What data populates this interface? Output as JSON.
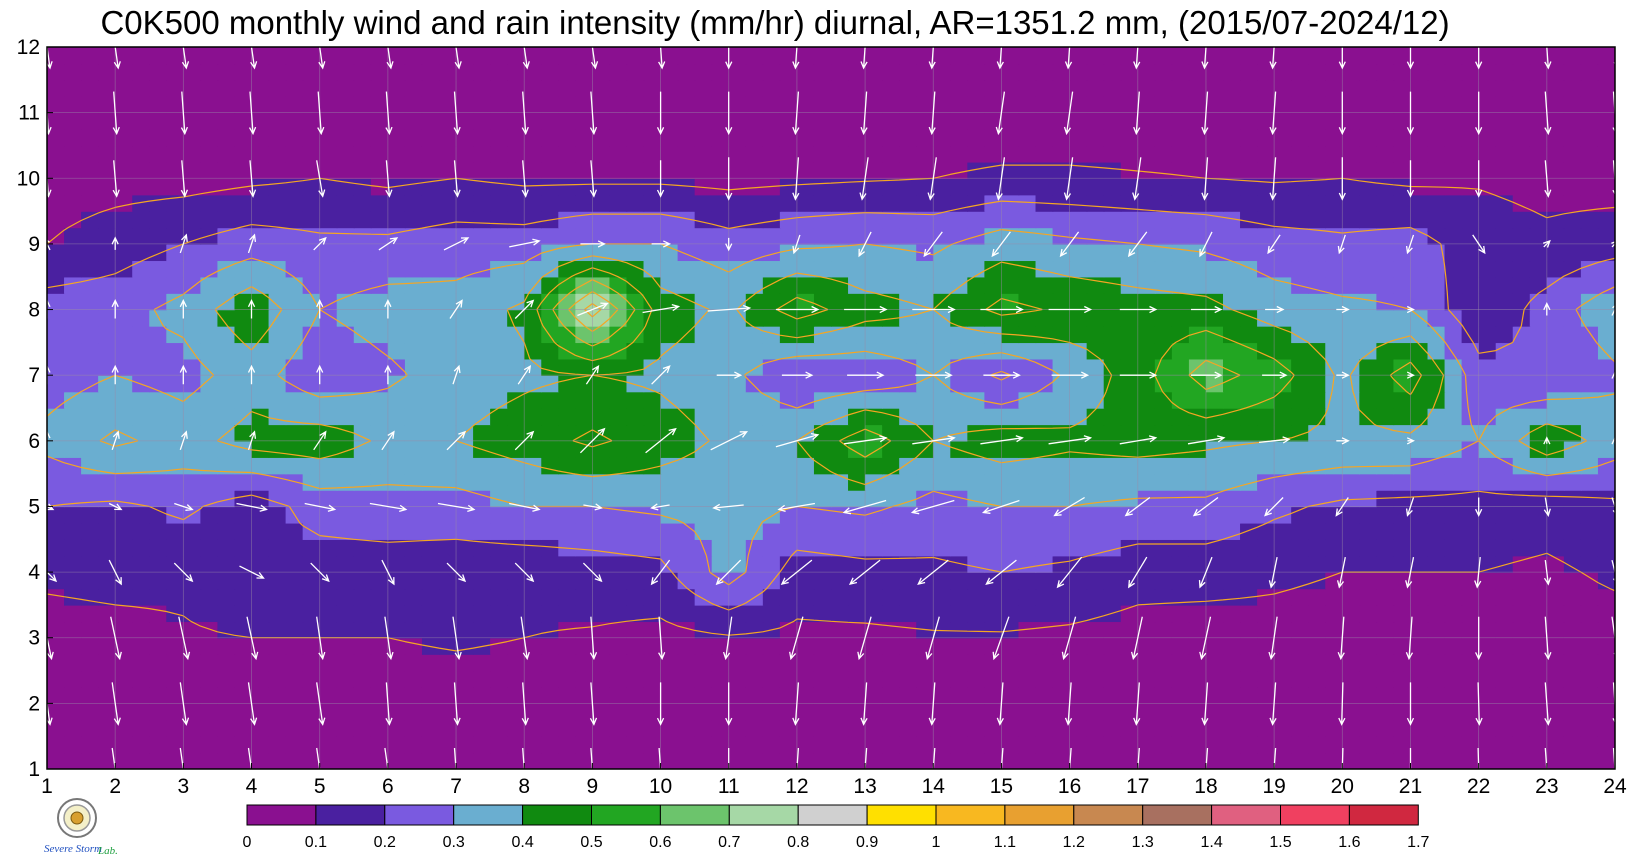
{
  "title": "C0K500 monthly wind and rain intensity (mm/hr) diurnal, AR=1351.2 mm, (2015/07-2024/12)",
  "logo_text": "Severe Storm Lab.",
  "chart_data": {
    "type": "heatmap",
    "x_ticks": [
      "1",
      "2",
      "3",
      "4",
      "5",
      "6",
      "7",
      "8",
      "9",
      "10",
      "11",
      "12",
      "13",
      "14",
      "15",
      "16",
      "17",
      "18",
      "19",
      "20",
      "21",
      "22",
      "23",
      "24"
    ],
    "y_ticks": [
      "1",
      "2",
      "3",
      "4",
      "5",
      "6",
      "7",
      "8",
      "9",
      "10",
      "11",
      "12"
    ],
    "xlim": [
      1,
      24
    ],
    "ylim": [
      1,
      12
    ],
    "grid": true,
    "colorbar": {
      "levels": [
        "0",
        "0.1",
        "0.2",
        "0.3",
        "0.4",
        "0.5",
        "0.6",
        "0.7",
        "0.8",
        "0.9",
        "1",
        "1.1",
        "1.2",
        "1.3",
        "1.4",
        "1.5",
        "1.6",
        "1.7"
      ],
      "colors": [
        "#8a1090",
        "#4a20a0",
        "#7a5ae0",
        "#6aaed0",
        "#108a10",
        "#22a622",
        "#6cc46c",
        "#a6d8a6",
        "#d0d0d0",
        "#ffe000",
        "#f8b820",
        "#e8a030",
        "#c88850",
        "#a87060",
        "#e06080",
        "#f04060",
        "#d02840"
      ]
    },
    "contour_line_color": "#f5a623",
    "vector_color": "#ffffff",
    "rain_rows": [
      [
        0.02,
        0.02,
        0.02,
        0.02,
        0.02,
        0.02,
        0.02,
        0.02,
        0.02,
        0.02,
        0.02,
        0.02,
        0.02,
        0.02,
        0.02,
        0.02,
        0.02,
        0.02,
        0.02,
        0.02,
        0.02,
        0.02,
        0.02,
        0.02
      ],
      [
        0.02,
        0.02,
        0.02,
        0.02,
        0.02,
        0.02,
        0.02,
        0.02,
        0.02,
        0.02,
        0.02,
        0.02,
        0.02,
        0.02,
        0.02,
        0.02,
        0.02,
        0.02,
        0.02,
        0.02,
        0.02,
        0.02,
        0.02,
        0.02
      ],
      [
        0.06,
        0.07,
        0.09,
        0.1,
        0.1,
        0.1,
        0.12,
        0.1,
        0.09,
        0.07,
        0.09,
        0.08,
        0.08,
        0.09,
        0.09,
        0.08,
        0.06,
        0.05,
        0.06,
        0.05,
        0.05,
        0.05,
        0.04,
        0.05
      ],
      [
        0.12,
        0.13,
        0.12,
        0.18,
        0.15,
        0.15,
        0.14,
        0.13,
        0.15,
        0.17,
        0.35,
        0.15,
        0.17,
        0.18,
        0.2,
        0.18,
        0.14,
        0.14,
        0.12,
        0.1,
        0.1,
        0.1,
        0.08,
        0.12
      ],
      [
        0.2,
        0.18,
        0.22,
        0.15,
        0.24,
        0.26,
        0.26,
        0.3,
        0.3,
        0.32,
        0.33,
        0.3,
        0.32,
        0.27,
        0.3,
        0.3,
        0.28,
        0.28,
        0.22,
        0.18,
        0.17,
        0.17,
        0.15,
        0.18
      ],
      [
        0.33,
        0.42,
        0.36,
        0.44,
        0.46,
        0.38,
        0.4,
        0.45,
        0.52,
        0.45,
        0.38,
        0.4,
        0.56,
        0.4,
        0.45,
        0.42,
        0.44,
        0.42,
        0.4,
        0.38,
        0.38,
        0.3,
        0.47,
        0.35
      ],
      [
        0.25,
        0.3,
        0.26,
        0.35,
        0.22,
        0.28,
        0.35,
        0.38,
        0.4,
        0.38,
        0.33,
        0.2,
        0.22,
        0.3,
        0.18,
        0.32,
        0.45,
        0.65,
        0.55,
        0.38,
        0.55,
        0.24,
        0.2,
        0.28
      ],
      [
        0.25,
        0.26,
        0.33,
        0.48,
        0.3,
        0.35,
        0.34,
        0.42,
        0.85,
        0.45,
        0.38,
        0.55,
        0.44,
        0.4,
        0.53,
        0.48,
        0.45,
        0.43,
        0.35,
        0.32,
        0.3,
        0.12,
        0.24,
        0.38
      ],
      [
        0.1,
        0.15,
        0.2,
        0.25,
        0.22,
        0.22,
        0.25,
        0.25,
        0.3,
        0.3,
        0.24,
        0.28,
        0.3,
        0.28,
        0.35,
        0.32,
        0.3,
        0.28,
        0.24,
        0.22,
        0.24,
        0.15,
        0.12,
        0.15
      ],
      [
        0.05,
        0.06,
        0.06,
        0.08,
        0.1,
        0.08,
        0.1,
        0.08,
        0.08,
        0.08,
        0.07,
        0.08,
        0.09,
        0.1,
        0.12,
        0.12,
        0.11,
        0.1,
        0.09,
        0.1,
        0.08,
        0.09,
        0.07,
        0.06
      ],
      [
        0.02,
        0.02,
        0.02,
        0.02,
        0.02,
        0.02,
        0.02,
        0.02,
        0.02,
        0.02,
        0.02,
        0.02,
        0.02,
        0.02,
        0.02,
        0.02,
        0.02,
        0.02,
        0.02,
        0.02,
        0.02,
        0.02,
        0.02,
        0.02
      ],
      [
        0.02,
        0.02,
        0.02,
        0.02,
        0.02,
        0.02,
        0.02,
        0.02,
        0.02,
        0.02,
        0.02,
        0.02,
        0.02,
        0.02,
        0.02,
        0.02,
        0.02,
        0.02,
        0.02,
        0.02,
        0.02,
        0.02,
        0.02,
        0.02
      ]
    ],
    "wind_u_rows": [
      [
        0.1,
        0.1,
        0.1,
        0.1,
        0.1,
        0.1,
        0.05,
        0.05,
        0.05,
        0.05,
        0,
        -0.05,
        -0.05,
        -0.05,
        -0.05,
        -0.05,
        -0.05,
        -0.05,
        -0.05,
        -0.02,
        0,
        0.02,
        0.05,
        0.05
      ],
      [
        0.1,
        0.1,
        0.1,
        0.1,
        0.1,
        0.05,
        0.05,
        0.05,
        0.05,
        0,
        0,
        -0.05,
        -0.05,
        -0.05,
        -0.05,
        -0.05,
        -0.05,
        -0.05,
        -0.05,
        -0.02,
        0,
        0.02,
        0.05,
        0.05
      ],
      [
        0.15,
        0.15,
        0.15,
        0.15,
        0.1,
        0.1,
        0.1,
        0.1,
        0.05,
        0.05,
        -0.1,
        -0.2,
        -0.2,
        -0.2,
        -0.25,
        -0.2,
        -0.15,
        -0.15,
        -0.1,
        -0.05,
        -0.05,
        0,
        0.05,
        0.1
      ],
      [
        0.3,
        0.2,
        0.3,
        0.4,
        0.3,
        0.2,
        0.3,
        0.3,
        0.3,
        -0.3,
        -0.4,
        -0.5,
        -0.5,
        -0.5,
        -0.5,
        -0.4,
        -0.3,
        -0.2,
        -0.1,
        -0.1,
        -0.1,
        -0.05,
        0.05,
        0.1
      ],
      [
        0.2,
        0.2,
        0.3,
        0.5,
        0.5,
        0.6,
        0.6,
        0.5,
        0.3,
        -0.3,
        -0.5,
        -0.6,
        -0.7,
        -0.7,
        -0.6,
        -0.5,
        -0.4,
        -0.4,
        -0.3,
        -0.2,
        -0.1,
        0,
        0.05,
        0.1
      ],
      [
        0,
        0.1,
        0.1,
        0.1,
        0.2,
        0.2,
        0.3,
        0.3,
        0.4,
        0.5,
        0.6,
        0.7,
        0.7,
        0.7,
        0.7,
        0.7,
        0.6,
        0.6,
        0.5,
        0.2,
        0.1,
        0,
        0,
        0
      ],
      [
        0,
        0,
        0,
        0,
        0,
        0,
        0.1,
        0.2,
        0.2,
        0.3,
        0.4,
        0.5,
        0.6,
        0.6,
        0.6,
        0.6,
        0.6,
        0.5,
        0.4,
        0.2,
        0.1,
        0,
        0,
        0
      ],
      [
        0,
        0,
        0,
        0,
        0,
        0,
        0.2,
        0.3,
        0.5,
        0.6,
        0.7,
        0.7,
        0.7,
        0.7,
        0.7,
        0.7,
        0.6,
        0.5,
        0.3,
        0.2,
        0.1,
        0,
        0,
        0.1
      ],
      [
        -0.1,
        0,
        0.1,
        0.1,
        0.2,
        0.3,
        0.4,
        0.5,
        0.4,
        0.3,
        0,
        -0.1,
        -0.2,
        -0.3,
        -0.3,
        -0.3,
        -0.3,
        -0.2,
        -0.2,
        -0.1,
        -0.1,
        0.2,
        0.1,
        0.1
      ],
      [
        0.05,
        0.05,
        0.05,
        0.05,
        0.1,
        0.05,
        0.05,
        0.05,
        0.05,
        0,
        0,
        -0.05,
        -0.1,
        -0.1,
        -0.1,
        -0.1,
        -0.1,
        -0.05,
        -0.05,
        0,
        0,
        0,
        0.05,
        0.05
      ],
      [
        0.05,
        0.05,
        0.05,
        0.05,
        0.05,
        0.05,
        0.05,
        0.05,
        0.05,
        0,
        0,
        -0.05,
        -0.05,
        -0.05,
        -0.1,
        -0.1,
        -0.05,
        -0.05,
        -0.05,
        0,
        0,
        0,
        0.05,
        0.05
      ],
      [
        0.1,
        0.1,
        0.1,
        0.1,
        0.1,
        0.1,
        0.1,
        0.1,
        0.1,
        0.05,
        0,
        -0.05,
        -0.05,
        -0.05,
        -0.05,
        -0.05,
        -0.05,
        -0.05,
        -0.05,
        0,
        0,
        0,
        0.05,
        0.1
      ]
    ],
    "wind_v_rows": [
      [
        -0.7,
        -0.7,
        -0.7,
        -0.7,
        -0.7,
        -0.7,
        -0.7,
        -0.7,
        -0.7,
        -0.7,
        -0.7,
        -0.7,
        -0.7,
        -0.7,
        -0.7,
        -0.7,
        -0.7,
        -0.7,
        -0.7,
        -0.7,
        -0.7,
        -0.7,
        -0.7,
        -0.7
      ],
      [
        -0.7,
        -0.7,
        -0.7,
        -0.7,
        -0.7,
        -0.7,
        -0.7,
        -0.7,
        -0.7,
        -0.7,
        -0.7,
        -0.7,
        -0.7,
        -0.7,
        -0.7,
        -0.7,
        -0.7,
        -0.7,
        -0.7,
        -0.7,
        -0.7,
        -0.7,
        -0.7,
        -0.7
      ],
      [
        -0.7,
        -0.7,
        -0.7,
        -0.7,
        -0.7,
        -0.7,
        -0.7,
        -0.7,
        -0.7,
        -0.7,
        -0.7,
        -0.7,
        -0.7,
        -0.7,
        -0.7,
        -0.7,
        -0.7,
        -0.7,
        -0.7,
        -0.7,
        -0.7,
        -0.7,
        -0.7,
        -0.7
      ],
      [
        -0.3,
        -0.4,
        -0.3,
        -0.2,
        -0.3,
        -0.4,
        -0.3,
        -0.3,
        -0.3,
        -0.4,
        -0.4,
        -0.4,
        -0.4,
        -0.4,
        -0.4,
        -0.5,
        -0.5,
        -0.5,
        -0.5,
        -0.5,
        -0.5,
        -0.5,
        -0.4,
        -0.4
      ],
      [
        -0.1,
        -0.1,
        -0.1,
        -0.1,
        -0.1,
        -0.1,
        -0.1,
        -0.1,
        -0.05,
        -0.05,
        -0.05,
        -0.1,
        -0.2,
        -0.2,
        -0.2,
        -0.3,
        -0.3,
        -0.3,
        -0.3,
        -0.3,
        -0.3,
        -0.3,
        -0.3,
        -0.3
      ],
      [
        0.3,
        0.3,
        0.3,
        0.3,
        0.3,
        0.3,
        0.3,
        0.3,
        0.4,
        0.4,
        0.3,
        0.2,
        0.1,
        0.1,
        0.1,
        0.1,
        0.1,
        0.1,
        0.05,
        0,
        0,
        0,
        0.1,
        0.1
      ],
      [
        0.3,
        0.3,
        0.3,
        0.3,
        0.3,
        0.3,
        0.3,
        0.3,
        0.3,
        0.3,
        0,
        0,
        0,
        0,
        0,
        0,
        0,
        0,
        0,
        0,
        0,
        0,
        0,
        0.1
      ],
      [
        0.3,
        0.3,
        0.3,
        0.3,
        0.3,
        0.3,
        0.3,
        0.3,
        0.2,
        0.1,
        0.05,
        0,
        0,
        0,
        0,
        0,
        0,
        0,
        0,
        0,
        0,
        0,
        0.2,
        0.2
      ],
      [
        0.2,
        0.2,
        0.3,
        0.3,
        0.2,
        0.2,
        0.2,
        0.1,
        0,
        0,
        -0.2,
        -0.3,
        -0.4,
        -0.4,
        -0.4,
        -0.4,
        -0.4,
        -0.4,
        -0.3,
        -0.3,
        -0.3,
        -0.3,
        0.1,
        0.1
      ],
      [
        -0.6,
        -0.6,
        -0.6,
        -0.6,
        -0.6,
        -0.6,
        -0.6,
        -0.6,
        -0.6,
        -0.6,
        -0.7,
        -0.7,
        -0.7,
        -0.7,
        -0.7,
        -0.7,
        -0.7,
        -0.7,
        -0.7,
        -0.7,
        -0.6,
        -0.6,
        -0.6,
        -0.6
      ],
      [
        -0.7,
        -0.7,
        -0.7,
        -0.7,
        -0.7,
        -0.7,
        -0.7,
        -0.7,
        -0.7,
        -0.7,
        -0.7,
        -0.7,
        -0.7,
        -0.7,
        -0.7,
        -0.7,
        -0.7,
        -0.7,
        -0.7,
        -0.7,
        -0.7,
        -0.7,
        -0.7,
        -0.7
      ],
      [
        -0.7,
        -0.7,
        -0.7,
        -0.7,
        -0.7,
        -0.7,
        -0.7,
        -0.7,
        -0.7,
        -0.7,
        -0.7,
        -0.7,
        -0.7,
        -0.7,
        -0.7,
        -0.7,
        -0.7,
        -0.7,
        -0.7,
        -0.7,
        -0.7,
        -0.7,
        -0.7,
        -0.7
      ]
    ]
  }
}
